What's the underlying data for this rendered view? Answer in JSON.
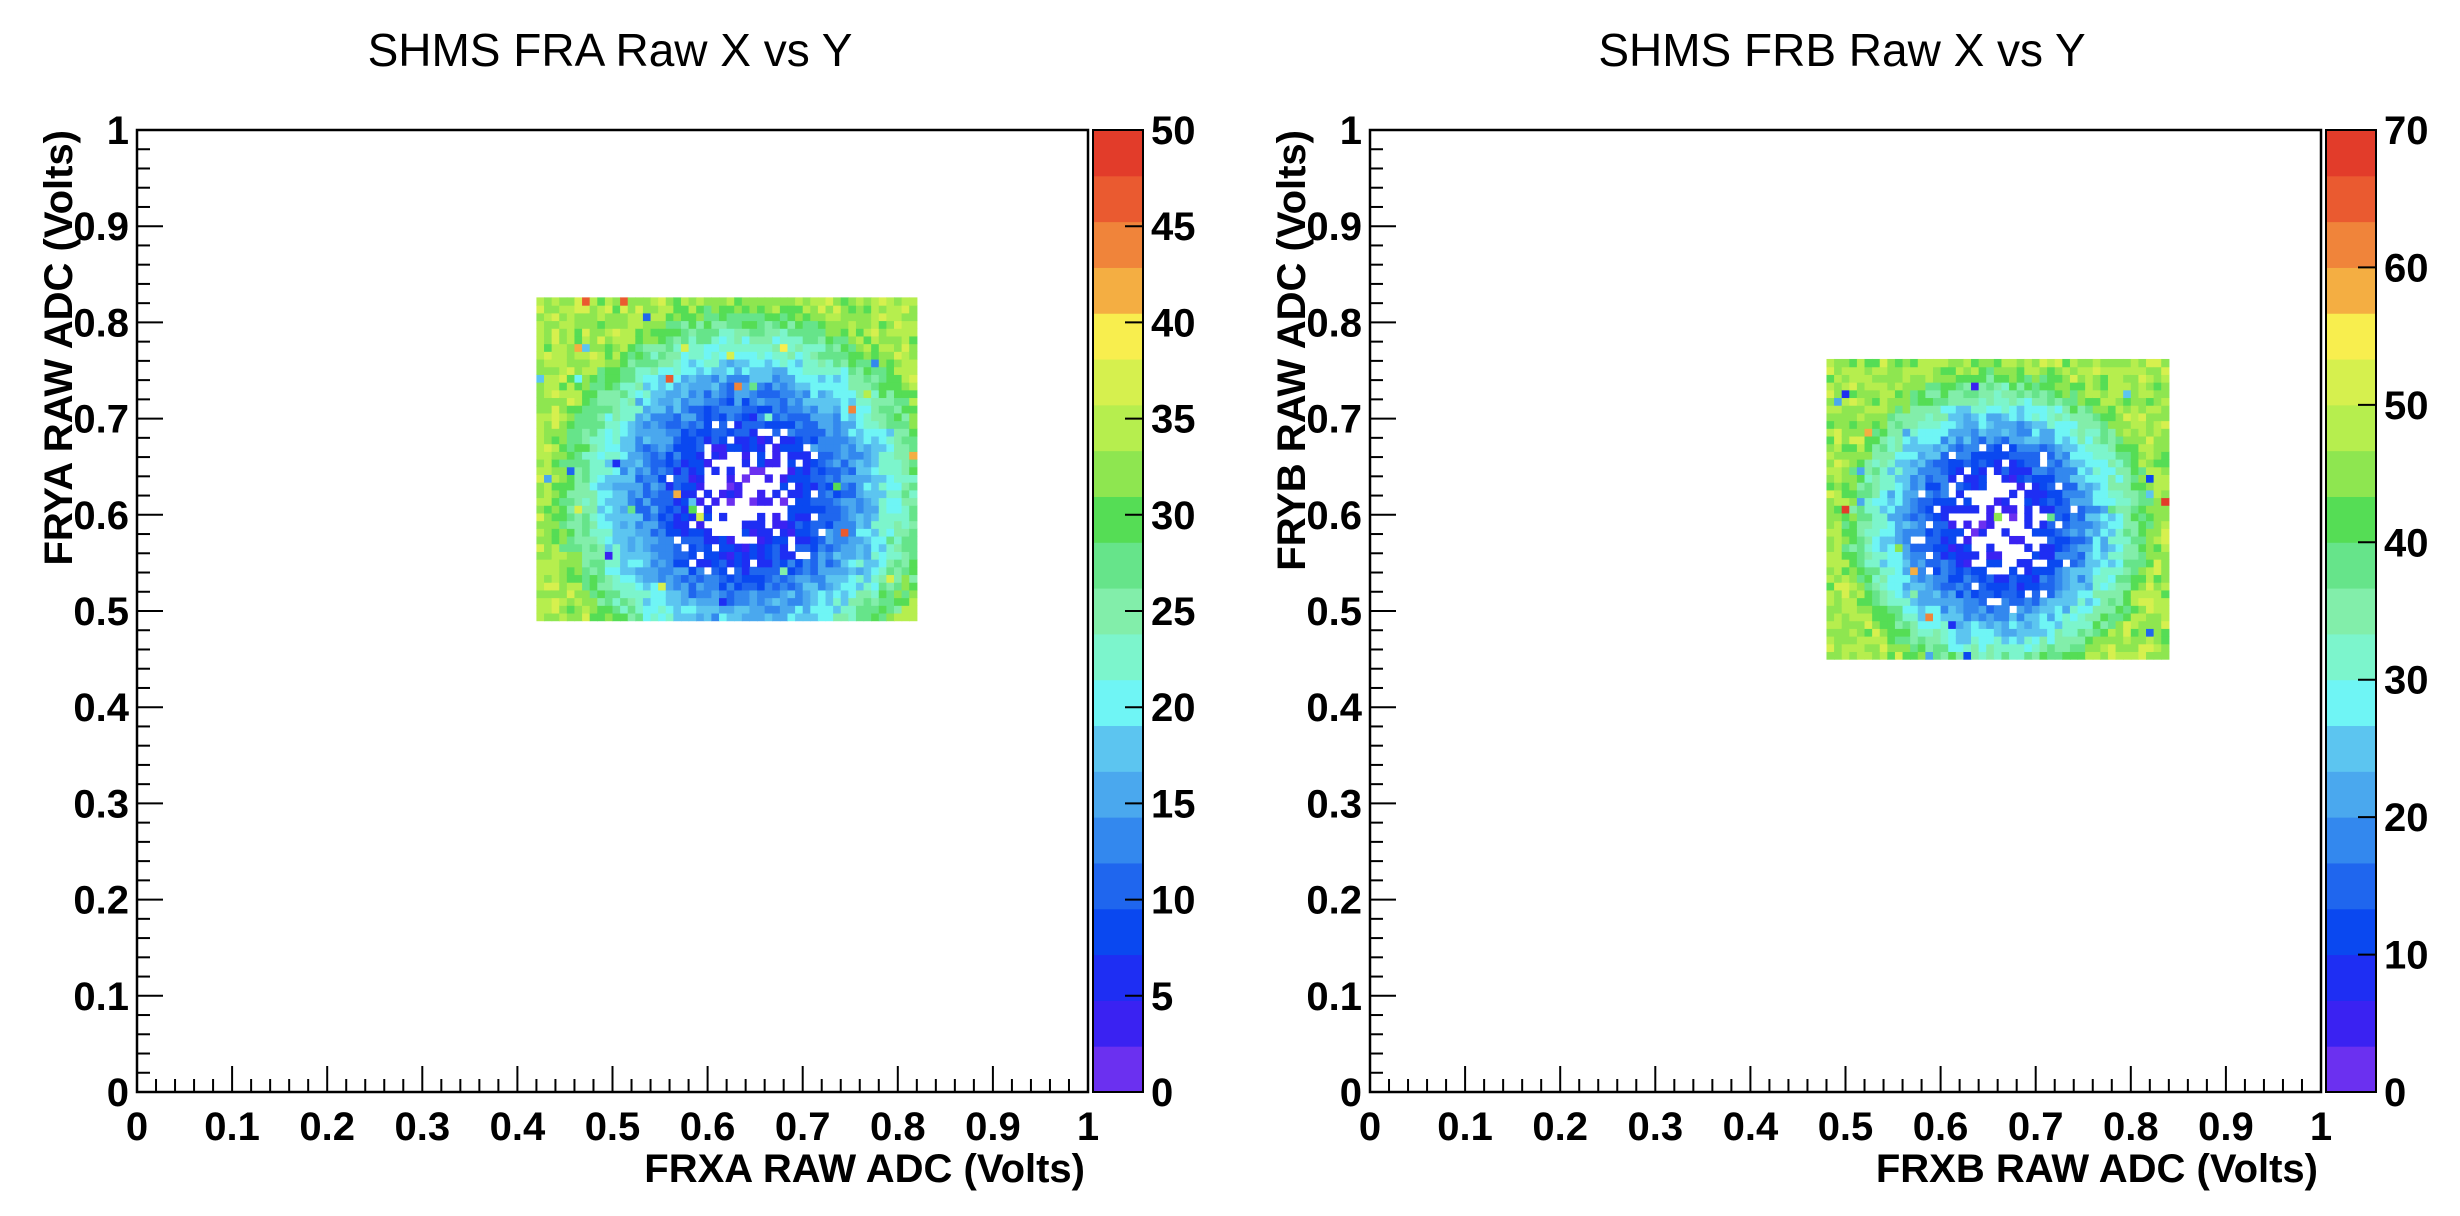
{
  "palette": [
    "#6b30f0",
    "#3a22f2",
    "#1e2ef3",
    "#0a48f0",
    "#1f66ee",
    "#3388ee",
    "#4aa8ee",
    "#5cc5f0",
    "#6ff5f5",
    "#7cf5cc",
    "#82eeaa",
    "#66e48a",
    "#55dd55",
    "#8ee650",
    "#b6ee4e",
    "#d6f04e",
    "#f8ee4e",
    "#f4ae42",
    "#f0843a",
    "#ea5a30",
    "#e23c2a"
  ],
  "chart_data": [
    {
      "type": "heatmap",
      "title": "SHMS FRA Raw X vs Y",
      "xlabel": "FRXA RAW ADC (Volts)",
      "ylabel": "FRYA RAW ADC (Volts)",
      "xlim": [
        0,
        1
      ],
      "ylim": [
        0,
        1
      ],
      "x_ticks": [
        "0",
        "0.1",
        "0.2",
        "0.3",
        "0.4",
        "0.5",
        "0.6",
        "0.7",
        "0.8",
        "0.9",
        "1"
      ],
      "y_ticks": [
        "0",
        "0.1",
        "0.2",
        "0.3",
        "0.4",
        "0.5",
        "0.6",
        "0.7",
        "0.8",
        "0.9",
        "1"
      ],
      "color_scale": {
        "min": 0,
        "max": 50,
        "ticks": [
          "0",
          "5",
          "10",
          "15",
          "20",
          "25",
          "30",
          "35",
          "40",
          "45",
          "50"
        ]
      },
      "occupied_region": {
        "x": [
          0.42,
          0.82
        ],
        "y": [
          0.49,
          0.82
        ]
      },
      "center": [
        0.64,
        0.62
      ],
      "bin_width": 0.008,
      "grid": false,
      "legend": "colorbar-right"
    },
    {
      "type": "heatmap",
      "title": "SHMS FRB Raw X vs Y",
      "xlabel": "FRXB RAW ADC (Volts)",
      "ylabel": "FRYB RAW ADC (Volts)",
      "xlim": [
        0,
        1
      ],
      "ylim": [
        0,
        1
      ],
      "x_ticks": [
        "0",
        "0.1",
        "0.2",
        "0.3",
        "0.4",
        "0.5",
        "0.6",
        "0.7",
        "0.8",
        "0.9",
        "1"
      ],
      "y_ticks": [
        "0",
        "0.1",
        "0.2",
        "0.3",
        "0.4",
        "0.5",
        "0.6",
        "0.7",
        "0.8",
        "0.9",
        "1"
      ],
      "color_scale": {
        "min": 0,
        "max": 70,
        "ticks": [
          "0",
          "10",
          "20",
          "30",
          "40",
          "50",
          "60",
          "70"
        ]
      },
      "occupied_region": {
        "x": [
          0.48,
          0.84
        ],
        "y": [
          0.45,
          0.76
        ]
      },
      "center": [
        0.66,
        0.59
      ],
      "bin_width": 0.008,
      "grid": false,
      "legend": "colorbar-right"
    }
  ]
}
